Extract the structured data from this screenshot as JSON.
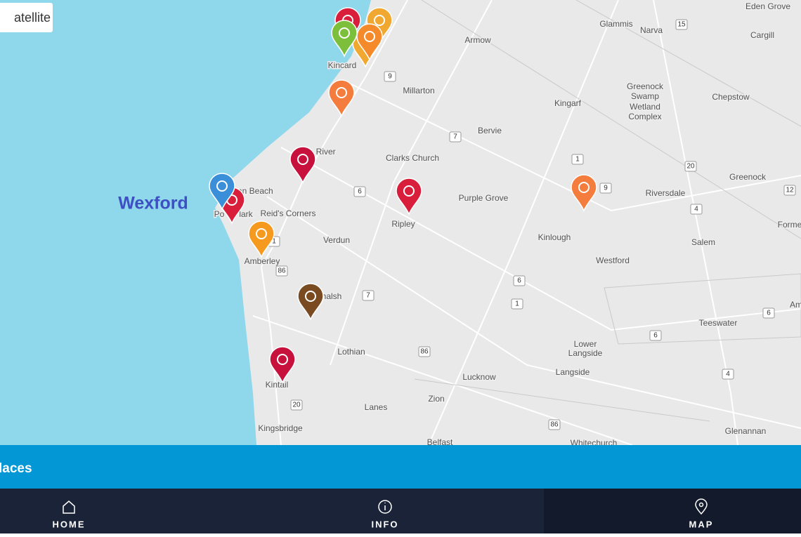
{
  "map": {
    "satellite_button": "atellite",
    "highlight_label": "Wexford",
    "wetland_label": [
      "Greenock",
      "Swamp",
      "Wetland",
      "Complex"
    ],
    "places": [
      "Eden Grove",
      "Glammis",
      "Narva",
      "Cargill",
      "Armow",
      "Kincard",
      "Millarton",
      "Chepstow",
      "Kingarf",
      "Bervie",
      "Pine River",
      "Clarks Church",
      "Greenock",
      "Riversdale",
      "gan Beach",
      "Reid's Corners",
      "Purple Grove",
      "Ripley",
      "Kinlough",
      "Salem",
      "Forme",
      "Westford",
      "Verdun",
      "Amberley",
      "halsh",
      "Teeswater",
      "Am",
      "Lower",
      "Langside",
      "Langside",
      "Lothian",
      "Lucknow",
      "Kintail",
      "Zion",
      "Lanes",
      "Kingsbridge",
      "Glenannan",
      "Belfast",
      "Whitechurch",
      "Po",
      "lark"
    ],
    "road_shields": [
      "15",
      "9",
      "7",
      "1",
      "20",
      "9",
      "12",
      "4",
      "6",
      "1",
      "86",
      "6",
      "7",
      "1",
      "6",
      "6",
      "86",
      "4",
      "20",
      "86"
    ]
  },
  "places_bar": "laces",
  "nav": [
    {
      "label": "HOME"
    },
    {
      "label": "INFO"
    },
    {
      "label": "MAP"
    }
  ]
}
